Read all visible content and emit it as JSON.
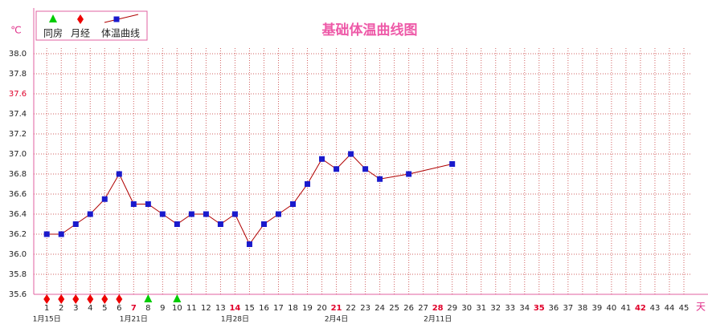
{
  "chart_data": {
    "type": "line",
    "title": "基础体温曲线图",
    "y_unit": "℃",
    "x_unit": "天",
    "xlim": [
      0.1,
      45.5
    ],
    "ylim": [
      35.6,
      38.0
    ],
    "xticks": [
      1,
      2,
      3,
      4,
      5,
      6,
      7,
      8,
      9,
      10,
      11,
      12,
      13,
      14,
      15,
      16,
      17,
      18,
      19,
      20,
      21,
      22,
      23,
      24,
      25,
      26,
      27,
      28,
      29,
      30,
      31,
      32,
      33,
      34,
      35,
      36,
      37,
      38,
      39,
      40,
      41,
      42,
      43,
      44,
      45
    ],
    "xtick_highlight": [
      7,
      14,
      21,
      28,
      35,
      42
    ],
    "yticks": [
      {
        "value": 35.6,
        "label": "35.6"
      },
      {
        "value": 35.8,
        "label": "35.8"
      },
      {
        "value": 36,
        "label": "36.0"
      },
      {
        "value": 36.2,
        "label": "36.2"
      },
      {
        "value": 36.4,
        "label": "36.4"
      },
      {
        "value": 36.6,
        "label": "36.6"
      },
      {
        "value": 36.8,
        "label": "36.8"
      },
      {
        "value": 37,
        "label": "37.0"
      },
      {
        "value": 37.2,
        "label": "37.2"
      },
      {
        "value": 37.4,
        "label": "37.4"
      },
      {
        "value": 37.6,
        "label": "37.6"
      },
      {
        "value": 37.8,
        "label": "37.8"
      },
      {
        "value": 38,
        "label": "38.0"
      }
    ],
    "ytick_highlight": [
      37.6
    ],
    "highlight_color": "#e0002a",
    "x_date_labels": [
      {
        "value": 1,
        "label": "1月15日"
      },
      {
        "value": 7,
        "label": "1月21日"
      },
      {
        "value": 14,
        "label": "1月28日"
      },
      {
        "value": 21,
        "label": "2月4日"
      },
      {
        "value": 28,
        "label": "2月11日"
      }
    ],
    "grid": true,
    "legend": "upper left",
    "markers": [
      {
        "name": "同房",
        "shape": "triangle",
        "color": "#00cc00",
        "x": [
          8,
          10
        ]
      },
      {
        "name": "月经",
        "shape": "diamond",
        "color": "#ee0000",
        "x": [
          1,
          2,
          3,
          4,
          5,
          6
        ]
      }
    ],
    "series": [
      {
        "name": "体温曲线",
        "color": "#1a1acc",
        "line_color": "#b00000",
        "x": [
          1,
          2,
          3,
          4,
          5,
          6,
          7,
          8,
          9,
          10,
          11,
          12,
          13,
          14,
          15,
          16,
          17,
          18,
          19,
          20,
          21,
          22,
          23,
          24,
          26,
          29
        ],
        "values": [
          36.2,
          36.2,
          36.3,
          36.4,
          36.55,
          36.8,
          36.5,
          36.5,
          36.4,
          36.3,
          36.4,
          36.4,
          36.3,
          36.4,
          36.1,
          36.3,
          36.4,
          36.5,
          36.7,
          36.95,
          36.85,
          37.0,
          36.85,
          36.75,
          36.8,
          36.9
        ]
      }
    ]
  }
}
